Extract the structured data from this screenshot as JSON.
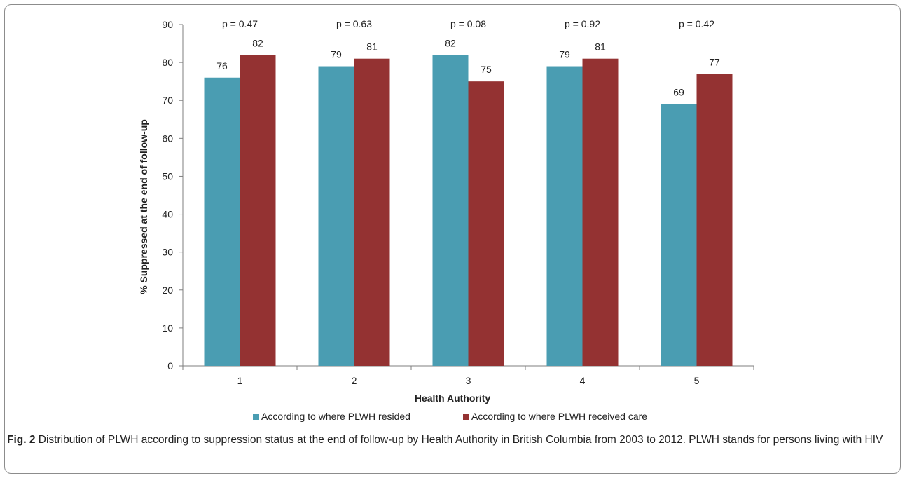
{
  "chart_data": {
    "type": "bar",
    "categories": [
      "1",
      "2",
      "3",
      "4",
      "5"
    ],
    "series": [
      {
        "name": "According to where PLWH resided",
        "values": [
          76,
          79,
          82,
          79,
          69
        ],
        "labels": [
          "76",
          "79",
          "82",
          "79",
          "69"
        ],
        "color": "#4a9db2"
      },
      {
        "name": "According to where PLWH received care",
        "values": [
          82,
          81,
          75,
          81,
          77
        ],
        "labels": [
          "82",
          "81",
          "75",
          "81",
          "77"
        ],
        "color": "#943232"
      }
    ],
    "annotations": [
      "p = 0.47",
      "p = 0.63",
      "p = 0.08",
      "p = 0.92",
      "p = 0.42"
    ],
    "title": "",
    "xlabel": "Health Authority",
    "ylabel": "% Suppressed at the end of follow-up",
    "ylim": [
      0,
      90
    ],
    "yticks": [
      0,
      10,
      20,
      30,
      40,
      50,
      60,
      70,
      80,
      90
    ],
    "grid": false,
    "legend_position": "bottom"
  },
  "caption": {
    "label": "Fig. 2",
    "text": "Distribution of PLWH according to suppression status at the end of follow-up by Health Authority in British Columbia from 2003 to 2012. PLWH stands for persons living with HIV"
  }
}
